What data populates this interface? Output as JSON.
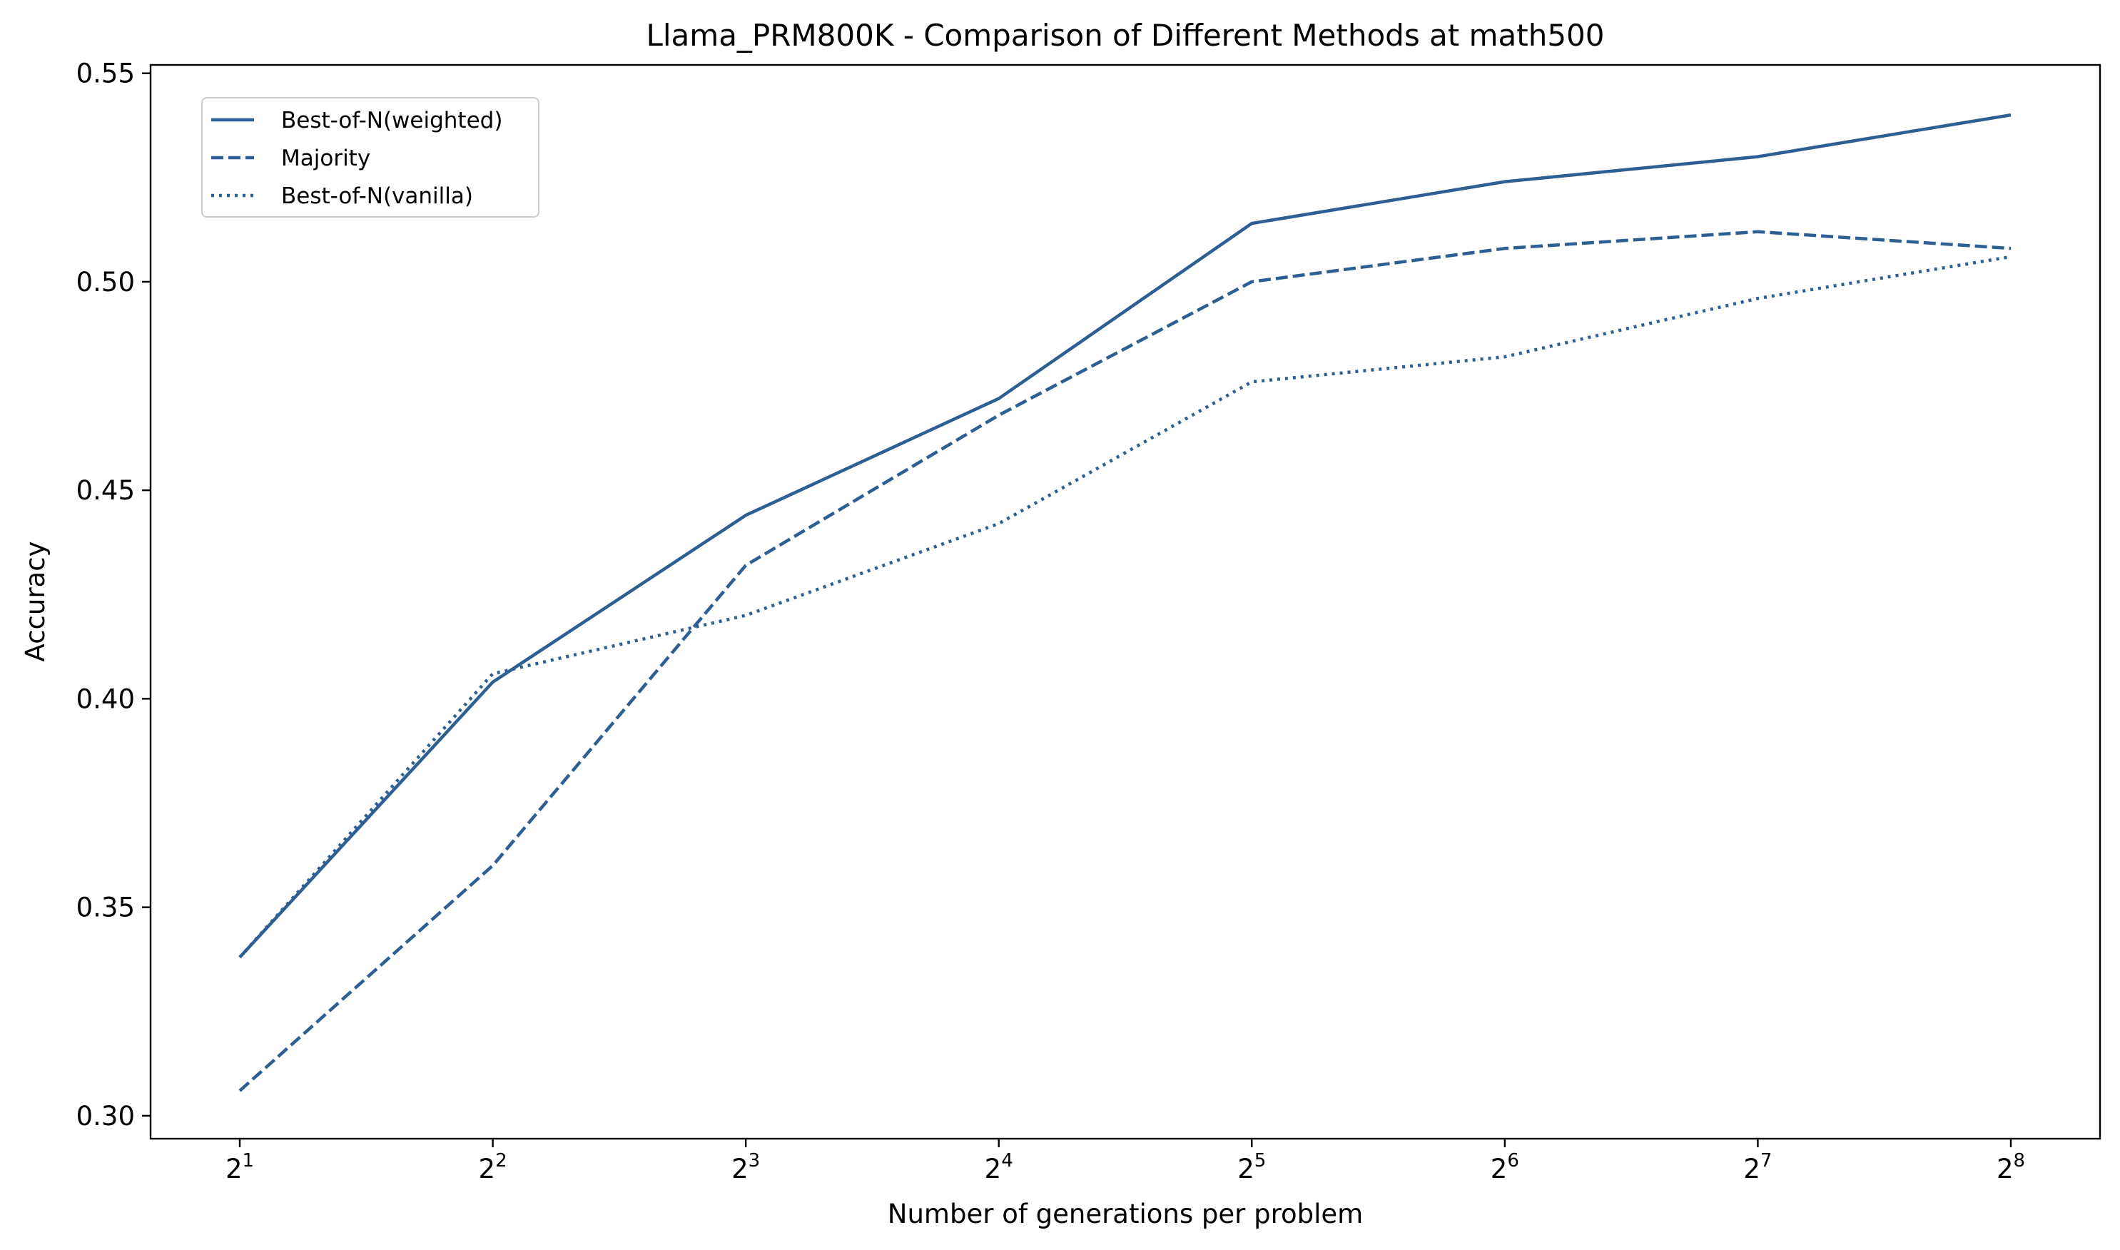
{
  "chart_data": {
    "type": "line",
    "title": "Llama_PRM800K - Comparison of Different Methods at math500",
    "xlabel": "Number of generations per problem",
    "ylabel": "Accuracy",
    "x": [
      2,
      4,
      8,
      16,
      32,
      64,
      128,
      256
    ],
    "x_tick_labels": [
      {
        "base": "2",
        "exp": "1"
      },
      {
        "base": "2",
        "exp": "2"
      },
      {
        "base": "2",
        "exp": "3"
      },
      {
        "base": "2",
        "exp": "4"
      },
      {
        "base": "2",
        "exp": "5"
      },
      {
        "base": "2",
        "exp": "6"
      },
      {
        "base": "2",
        "exp": "7"
      },
      {
        "base": "2",
        "exp": "8"
      }
    ],
    "x_scale": "log2",
    "y_ticks": [
      0.3,
      0.35,
      0.4,
      0.45,
      0.5,
      0.55
    ],
    "y_tick_labels": [
      "0.30",
      "0.35",
      "0.40",
      "0.45",
      "0.50",
      "0.55"
    ],
    "ylim": [
      0.2945,
      0.552
    ],
    "grid": false,
    "legend_position": "upper-left",
    "line_color": "#2e5f92",
    "series": [
      {
        "name": "Best-of-N(weighted)",
        "style": "solid",
        "values": [
          0.338,
          0.404,
          0.444,
          0.472,
          0.514,
          0.524,
          0.53,
          0.54
        ]
      },
      {
        "name": "Majority",
        "style": "dashed",
        "values": [
          0.306,
          0.36,
          0.432,
          0.468,
          0.5,
          0.508,
          0.512,
          0.508
        ]
      },
      {
        "name": "Best-of-N(vanilla)",
        "style": "dotted",
        "values": [
          0.338,
          0.406,
          0.42,
          0.442,
          0.476,
          0.482,
          0.496,
          0.506
        ]
      }
    ]
  }
}
